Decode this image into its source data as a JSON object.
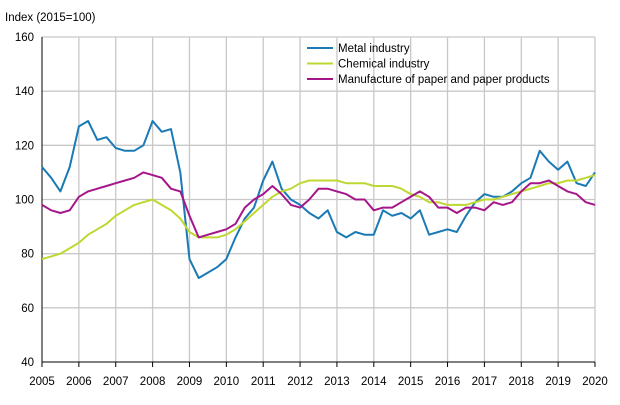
{
  "chart_data": {
    "type": "line",
    "title": "",
    "xlabel": "",
    "ylabel": "Index (2015=100)",
    "xlim": [
      2005,
      2020
    ],
    "ylim": [
      40,
      160
    ],
    "x_ticks": [
      "2005",
      "2006",
      "2007",
      "2008",
      "2009",
      "2010",
      "2011",
      "2012",
      "2013",
      "2014",
      "2015",
      "2016",
      "2017",
      "2018",
      "2019",
      "2020"
    ],
    "y_ticks": [
      "40",
      "60",
      "80",
      "100",
      "120",
      "140",
      "160"
    ],
    "grid": true,
    "legend_position": "top-right",
    "x": [
      2005,
      2005.25,
      2005.5,
      2005.75,
      2006,
      2006.25,
      2006.5,
      2006.75,
      2007,
      2007.25,
      2007.5,
      2007.75,
      2008,
      2008.25,
      2008.5,
      2008.75,
      2009,
      2009.25,
      2009.5,
      2009.75,
      2010,
      2010.25,
      2010.5,
      2010.75,
      2011,
      2011.25,
      2011.5,
      2011.75,
      2012,
      2012.25,
      2012.5,
      2012.75,
      2013,
      2013.25,
      2013.5,
      2013.75,
      2014,
      2014.25,
      2014.5,
      2014.75,
      2015,
      2015.25,
      2015.5,
      2015.75,
      2016,
      2016.25,
      2016.5,
      2016.75,
      2017,
      2017.25,
      2017.5,
      2017.75,
      2018,
      2018.25,
      2018.5,
      2018.75,
      2019,
      2019.25,
      2019.5,
      2019.75,
      2020
    ],
    "series": [
      {
        "name": "Metal industry",
        "color": "#1a7ab5",
        "values": [
          112,
          108,
          103,
          112,
          127,
          129,
          122,
          123,
          119,
          118,
          118,
          120,
          129,
          125,
          126,
          110,
          78,
          71,
          73,
          75,
          78,
          86,
          93,
          97,
          107,
          114,
          104,
          100,
          98,
          95,
          93,
          96,
          88,
          86,
          88,
          87,
          87,
          96,
          94,
          95,
          93,
          96,
          87,
          88,
          89,
          88,
          94,
          99,
          102,
          101,
          101,
          103,
          106,
          108,
          118,
          114,
          111,
          114,
          106,
          105,
          110
        ]
      },
      {
        "name": "Chemical industry",
        "color": "#bfd730",
        "values": [
          78,
          79,
          80,
          82,
          84,
          87,
          89,
          91,
          94,
          96,
          98,
          99,
          100,
          98,
          96,
          93,
          88,
          86,
          86,
          86,
          87,
          89,
          92,
          95,
          98,
          101,
          103,
          104,
          106,
          107,
          107,
          107,
          107,
          106,
          106,
          106,
          105,
          105,
          105,
          104,
          102,
          101,
          99,
          99,
          98,
          98,
          98,
          99,
          100,
          100,
          101,
          102,
          103,
          104,
          105,
          106,
          106,
          107,
          107,
          108,
          109
        ]
      },
      {
        "name": "Manufacture of paper and paper products",
        "color": "#a5168a",
        "values": [
          98,
          96,
          95,
          96,
          101,
          103,
          104,
          105,
          106,
          107,
          108,
          110,
          109,
          108,
          104,
          103,
          94,
          86,
          87,
          88,
          89,
          91,
          97,
          100,
          102,
          105,
          102,
          98,
          97,
          100,
          104,
          104,
          103,
          102,
          100,
          100,
          96,
          97,
          97,
          99,
          101,
          103,
          101,
          97,
          97,
          95,
          97,
          97,
          96,
          99,
          98,
          99,
          103,
          106,
          106,
          107,
          105,
          103,
          102,
          99,
          98
        ]
      }
    ]
  }
}
